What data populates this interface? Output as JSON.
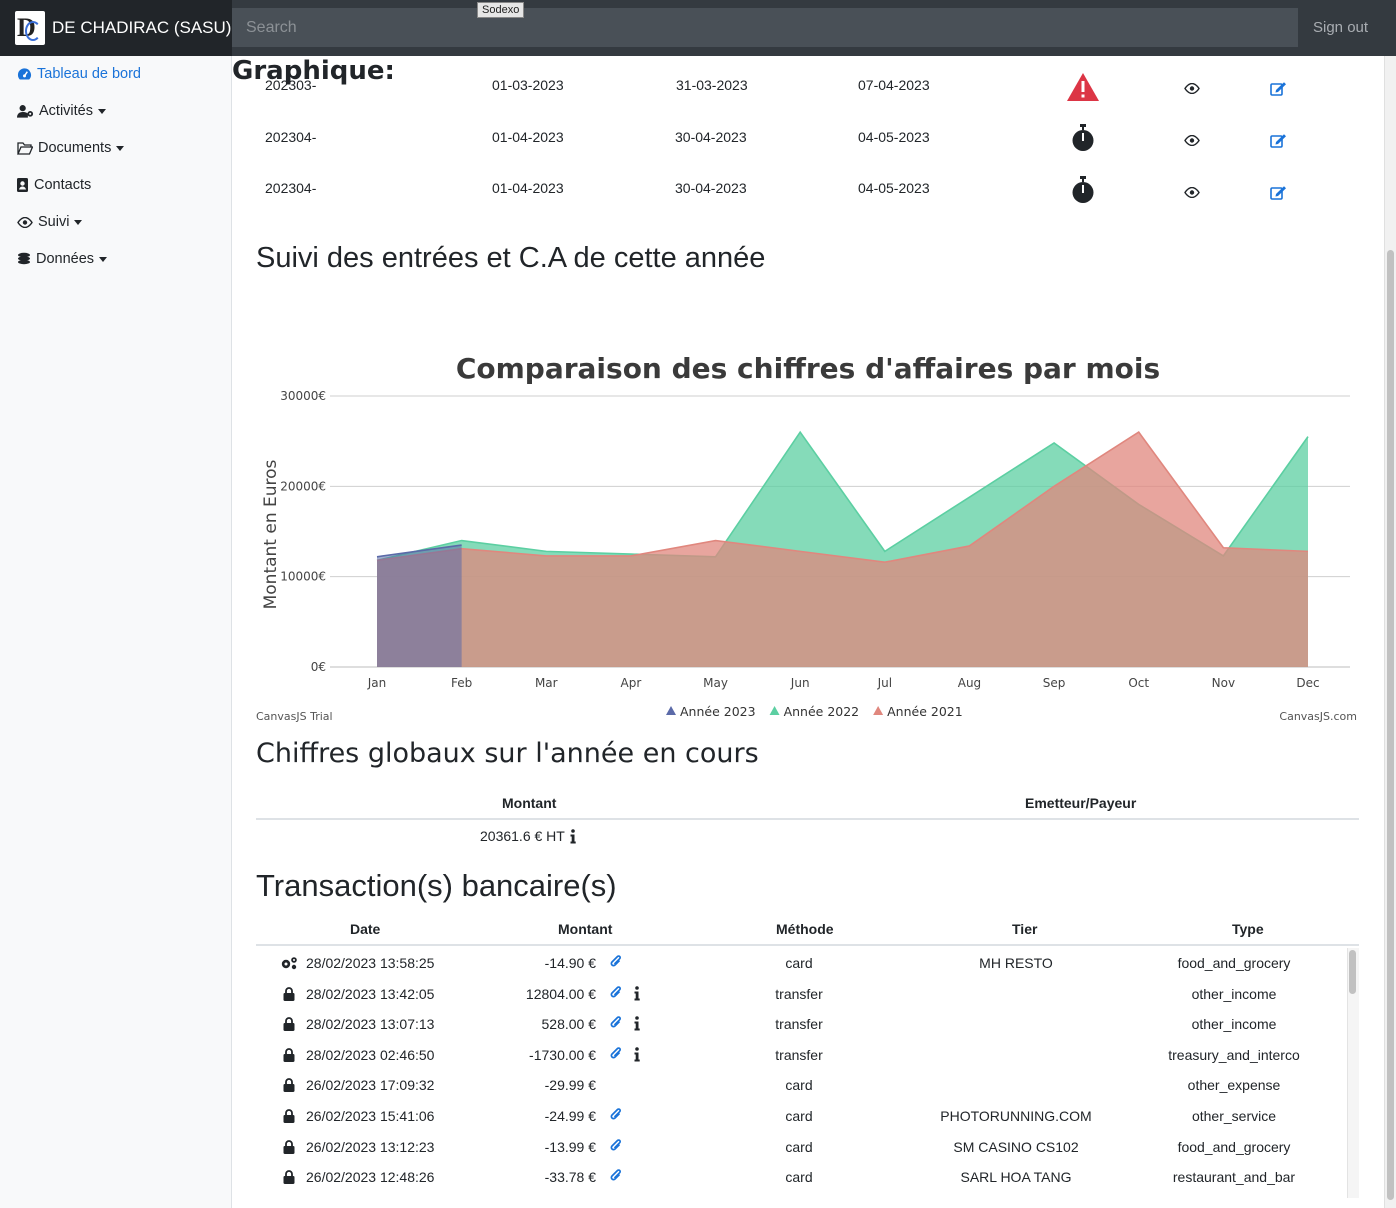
{
  "app": {
    "brand": "DE CHADIRAC (SASU)",
    "search_placeholder": "Search",
    "tooltip": "Sodexo",
    "signout": "Sign out"
  },
  "sidebar": {
    "items": [
      {
        "label": "Tableau de bord",
        "icon": "dashboard-gauge-icon",
        "active": true,
        "dropdown": false
      },
      {
        "label": "Activités",
        "icon": "user-cog-icon",
        "active": false,
        "dropdown": true
      },
      {
        "label": "Documents",
        "icon": "folder-open-icon",
        "active": false,
        "dropdown": true
      },
      {
        "label": "Contacts",
        "icon": "address-book-icon",
        "active": false,
        "dropdown": false
      },
      {
        "label": "Suivi",
        "icon": "eye-icon",
        "active": false,
        "dropdown": true
      },
      {
        "label": "Données",
        "icon": "coins-icon",
        "active": false,
        "dropdown": true
      }
    ]
  },
  "invoices": {
    "rows": [
      {
        "ref": "202303-",
        "start": "01-03-2023",
        "end": "31-03-2023",
        "due": "07-04-2023",
        "status": "warning-triangle-icon"
      },
      {
        "ref": "202304-",
        "start": "01-04-2023",
        "end": "30-04-2023",
        "due": "04-05-2023",
        "status": "stopwatch-icon"
      },
      {
        "ref": "202304-",
        "start": "01-04-2023",
        "end": "30-04-2023",
        "due": "04-05-2023",
        "status": "stopwatch-icon"
      }
    ]
  },
  "sections": {
    "suivi_title": "Suivi des entrées et C.A de cette année",
    "graph_title": "Graphique:",
    "global_title": "Chiffres globaux sur l'année en cours",
    "transactions_title": "Transaction(s) bancaire(s)"
  },
  "chart_data": {
    "type": "area",
    "title": "Comparaison des chiffres d'affaires par mois",
    "ylabel": "Montant en Euros",
    "xlabel": "",
    "ylim": [
      0,
      30000
    ],
    "y_ticks": [
      "0€",
      "10000€",
      "20000€",
      "30000€"
    ],
    "y_tick_values": [
      0,
      10000,
      20000,
      30000
    ],
    "categories": [
      "Jan",
      "Feb",
      "Mar",
      "Apr",
      "May",
      "Jun",
      "Jul",
      "Aug",
      "Sep",
      "Oct",
      "Nov",
      "Dec"
    ],
    "series": [
      {
        "name": "Année 2023",
        "color": "#5b6aa8",
        "values": [
          12200,
          13500,
          null,
          null,
          null,
          null,
          null,
          null,
          null,
          null,
          null,
          null
        ]
      },
      {
        "name": "Année 2022",
        "color": "#5ccfa2",
        "values": [
          11800,
          14000,
          12800,
          12500,
          12200,
          26000,
          12800,
          18800,
          24800,
          18000,
          12300,
          25500
        ]
      },
      {
        "name": "Année 2021",
        "color": "#e0877e",
        "values": [
          11800,
          13100,
          12300,
          12300,
          14000,
          12800,
          11600,
          13400,
          20000,
          26000,
          13200,
          12800
        ]
      }
    ],
    "grid": true,
    "legend": "bottom-center",
    "credit_left": "CanvasJS Trial",
    "credit_right": "CanvasJS.com"
  },
  "global": {
    "headers": [
      "Montant",
      "Emetteur/Payeur"
    ],
    "amount": "20361.6 € HT"
  },
  "transactions": {
    "headers": [
      "Date",
      "Montant",
      "Méthode",
      "Tier",
      "Type"
    ],
    "rows": [
      {
        "icon": "gears-icon",
        "date": "28/02/2023 13:58:25",
        "amount": "-14.90 €",
        "clip": true,
        "info": false,
        "method": "card",
        "tier": "MH RESTO",
        "type": "food_and_grocery"
      },
      {
        "icon": "lock-icon",
        "date": "28/02/2023 13:42:05",
        "amount": "12804.00 €",
        "clip": true,
        "info": true,
        "method": "transfer",
        "tier": "",
        "type": "other_income"
      },
      {
        "icon": "lock-icon",
        "date": "28/02/2023 13:07:13",
        "amount": "528.00 €",
        "clip": true,
        "info": true,
        "method": "transfer",
        "tier": "",
        "type": "other_income"
      },
      {
        "icon": "lock-icon",
        "date": "28/02/2023 02:46:50",
        "amount": "-1730.00 €",
        "clip": true,
        "info": true,
        "method": "transfer",
        "tier": "",
        "type": "treasury_and_interco"
      },
      {
        "icon": "lock-icon",
        "date": "26/02/2023 17:09:32",
        "amount": "-29.99 €",
        "clip": false,
        "info": false,
        "method": "card",
        "tier": "",
        "type": "other_expense"
      },
      {
        "icon": "lock-icon",
        "date": "26/02/2023 15:41:06",
        "amount": "-24.99 €",
        "clip": true,
        "info": false,
        "method": "card",
        "tier": "PHOTORUNNING.COM",
        "type": "other_service"
      },
      {
        "icon": "lock-icon",
        "date": "26/02/2023 13:12:23",
        "amount": "-13.99 €",
        "clip": true,
        "info": false,
        "method": "card",
        "tier": "SM CASINO CS102",
        "type": "food_and_grocery"
      },
      {
        "icon": "lock-icon",
        "date": "26/02/2023 12:48:26",
        "amount": "-33.78 €",
        "clip": true,
        "info": false,
        "method": "card",
        "tier": "SARL HOA TANG",
        "type": "restaurant_and_bar"
      }
    ]
  },
  "colors": {
    "accent": "#1a73d9",
    "danger": "#dc3545",
    "topbar": "#343a40"
  }
}
